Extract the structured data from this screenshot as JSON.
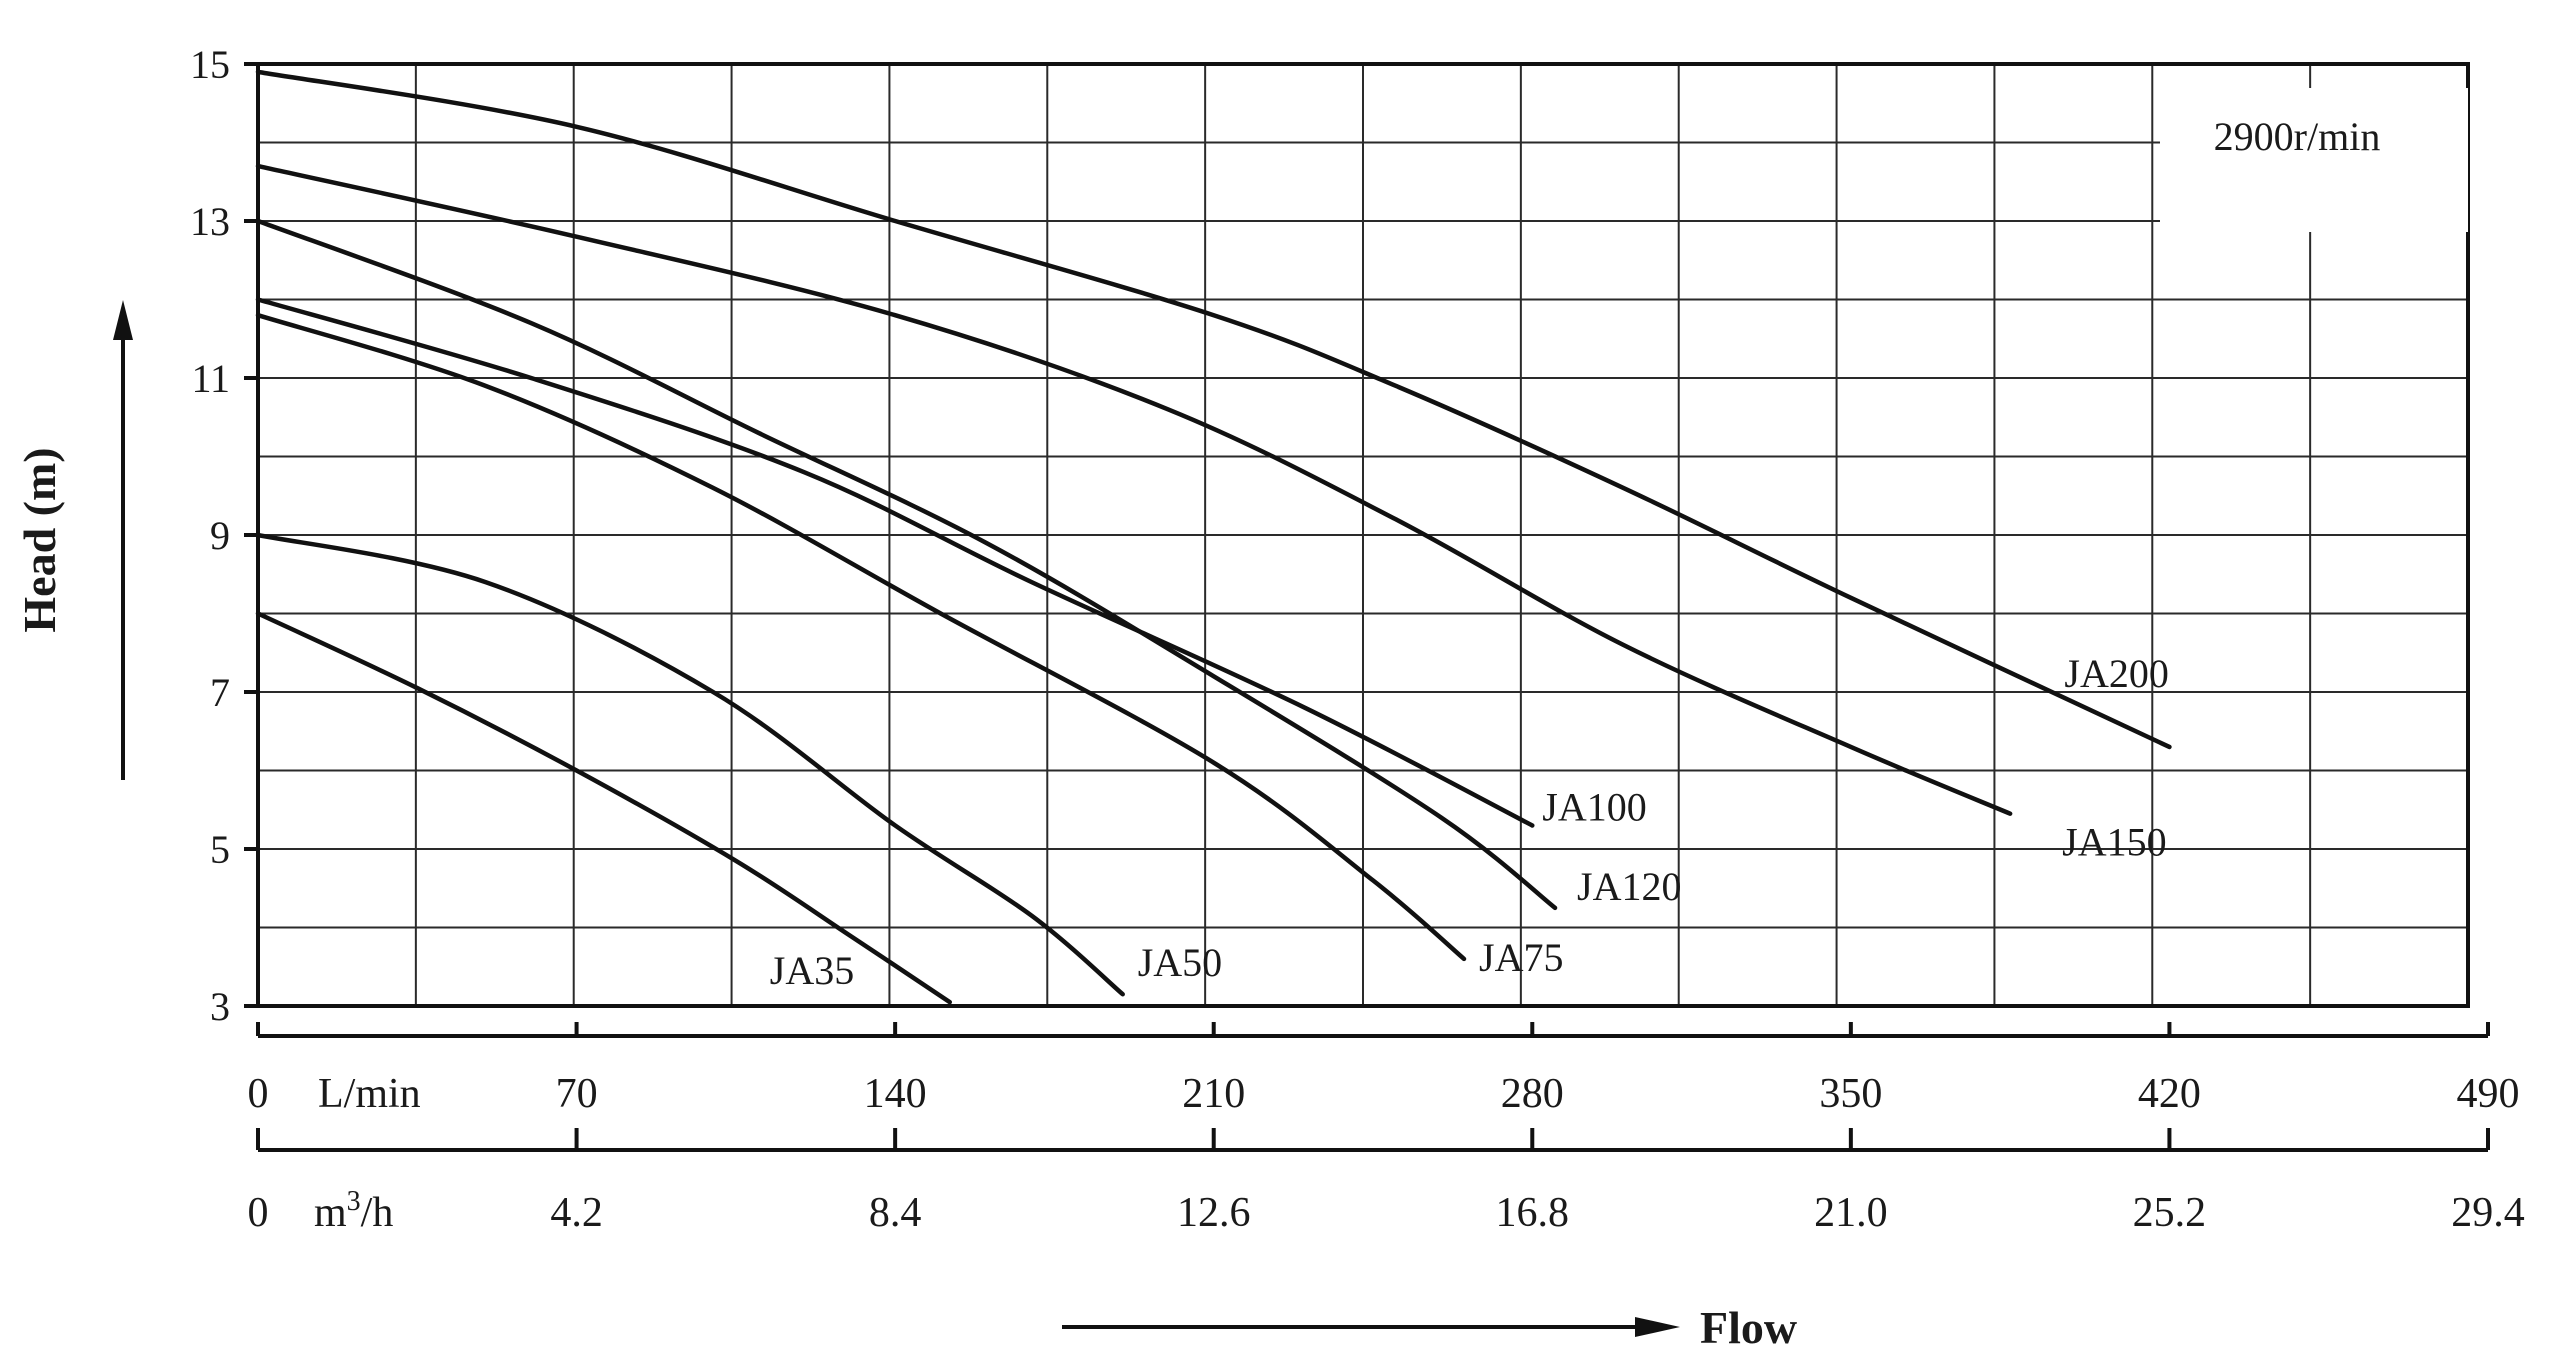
{
  "chart_data": {
    "type": "line",
    "title": "",
    "annotation": "2900r/min",
    "ylabel": "Head (m)",
    "xlabel": "Flow",
    "ylim": [
      3,
      15
    ],
    "xlim": [
      0,
      490
    ],
    "y_ticks": [
      "3",
      "5",
      "7",
      "9",
      "11",
      "13",
      "15"
    ],
    "x_ticks_lmin": [
      "0",
      "70",
      "140",
      "210",
      "280",
      "350",
      "420",
      "490"
    ],
    "x_ticks_m3h": [
      "0",
      "4.2",
      "8.4",
      "12.6",
      "16.8",
      "21.0",
      "25.2",
      "29.4"
    ],
    "x_unit_lmin": "L/min",
    "x_unit_m3h_base": "m",
    "x_unit_m3h_sup": "3",
    "x_unit_m3h_tail": "/h",
    "x_unit": "L/min",
    "grid": true,
    "series": [
      {
        "name": "JA35",
        "x": [
          0,
          35,
          70,
          105,
          130,
          152
        ],
        "y": [
          8.0,
          7.05,
          6.0,
          4.85,
          3.9,
          3.05
        ]
      },
      {
        "name": "JA50",
        "x": [
          0,
          50,
          100,
          140,
          170,
          190
        ],
        "y": [
          9.0,
          8.4,
          7.0,
          5.3,
          4.15,
          3.15
        ]
      },
      {
        "name": "JA75",
        "x": [
          0,
          50,
          100,
          150,
          210,
          245,
          265
        ],
        "y": [
          11.8,
          10.9,
          9.6,
          8.0,
          6.1,
          4.6,
          3.6
        ]
      },
      {
        "name": "JA100",
        "x": [
          0,
          60,
          120,
          170,
          230,
          280
        ],
        "y": [
          12.0,
          11.0,
          9.8,
          8.4,
          6.8,
          5.3
        ]
      },
      {
        "name": "JA120",
        "x": [
          0,
          60,
          110,
          160,
          210,
          260,
          285
        ],
        "y": [
          13.0,
          11.7,
          10.3,
          8.9,
          7.2,
          5.4,
          4.25
        ]
      },
      {
        "name": "JA150",
        "x": [
          0,
          70,
          140,
          200,
          250,
          300,
          350,
          385
        ],
        "y": [
          13.7,
          12.8,
          11.8,
          10.6,
          9.2,
          7.6,
          6.3,
          5.45
        ]
      },
      {
        "name": "JA200",
        "x": [
          0,
          70,
          140,
          210,
          250,
          300,
          350,
          420
        ],
        "y": [
          14.9,
          14.2,
          13.0,
          11.8,
          10.9,
          9.6,
          8.2,
          6.3
        ]
      }
    ]
  }
}
